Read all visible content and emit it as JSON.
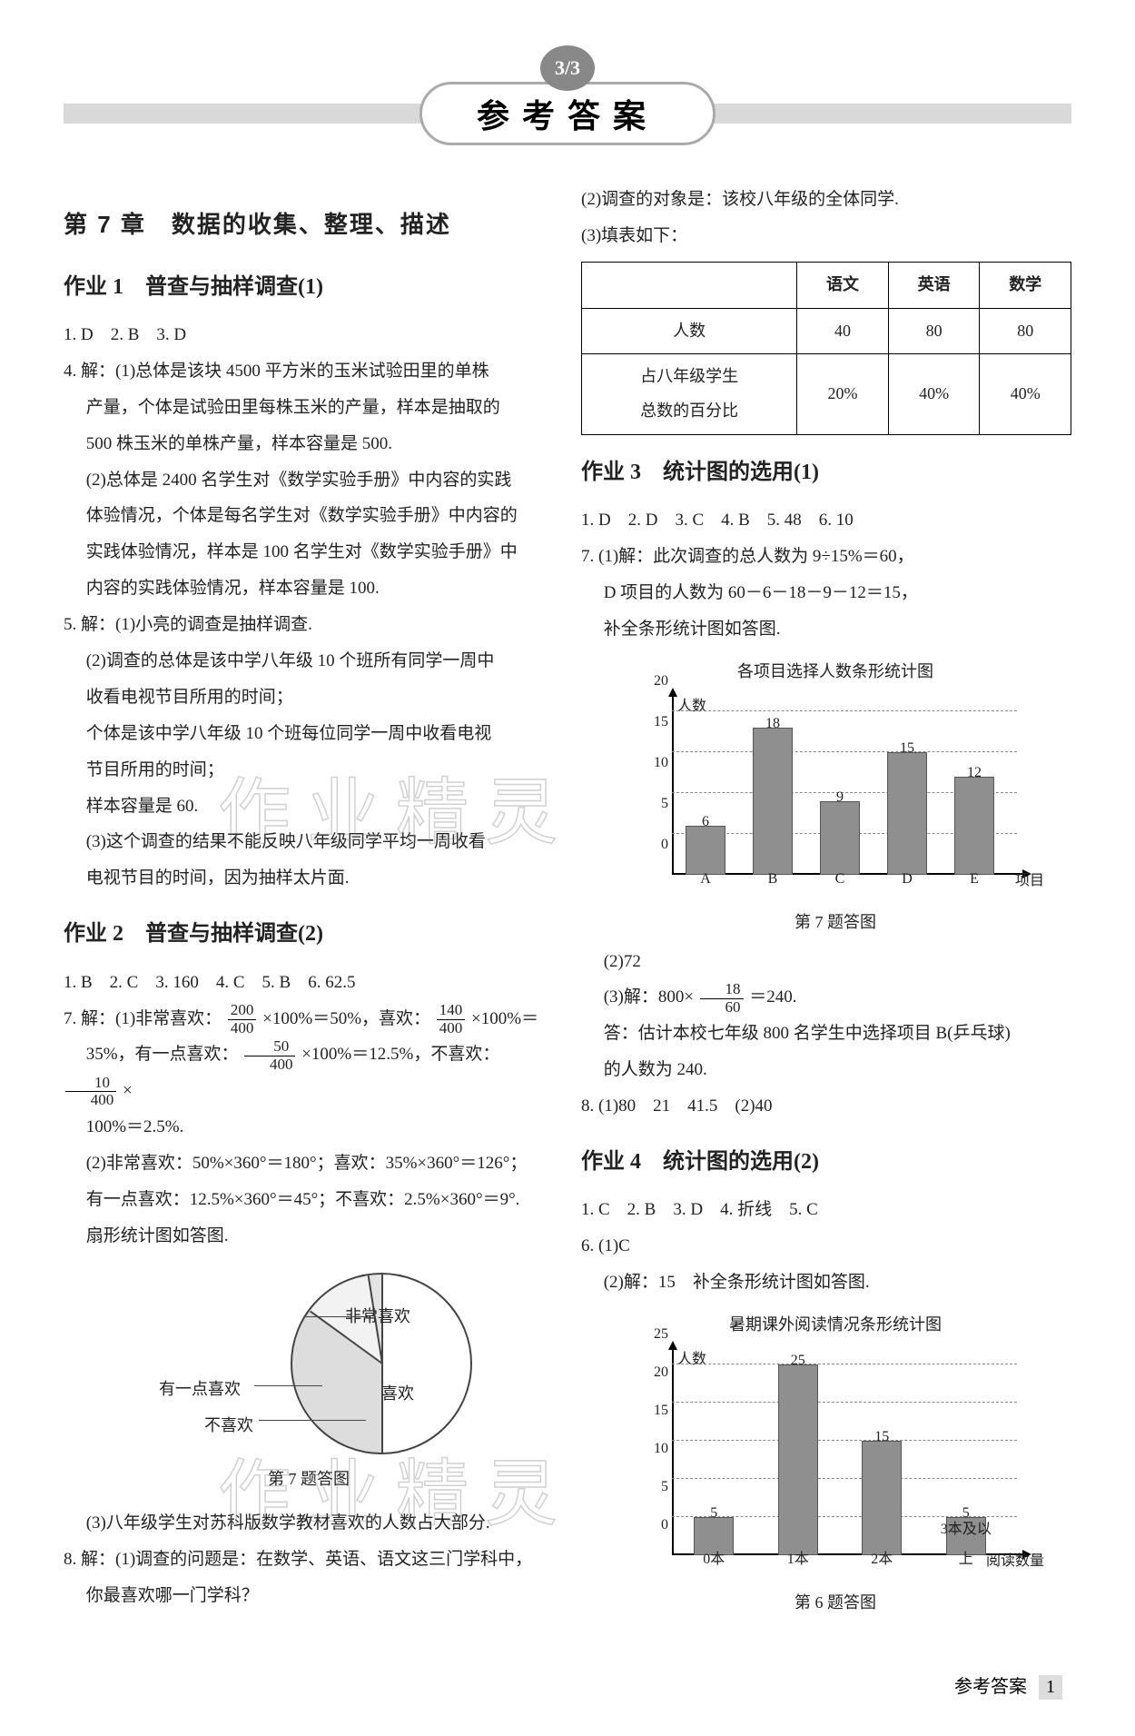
{
  "header": {
    "badge": "3/3",
    "title": "参考答案"
  },
  "left": {
    "chapter": "第 7 章　数据的收集、整理、描述",
    "hw1_title": "作业 1　普查与抽样调查(1)",
    "hw1_ans1": "1. D　2. B　3. D",
    "hw1_q4_1": "4. 解：(1)总体是该块 4500 平方米的玉米试验田里的单株",
    "hw1_q4_2": "产量，个体是试验田里每株玉米的产量，样本是抽取的",
    "hw1_q4_3": "500 株玉米的单株产量，样本容量是 500.",
    "hw1_q4_4": "(2)总体是 2400 名学生对《数学实验手册》中内容的实践",
    "hw1_q4_5": "体验情况，个体是每名学生对《数学实验手册》中内容的",
    "hw1_q4_6": "实践体验情况，样本是 100 名学生对《数学实验手册》中",
    "hw1_q4_7": "内容的实践体验情况，样本容量是 100.",
    "hw1_q5_1": "5. 解：(1)小亮的调查是抽样调查.",
    "hw1_q5_2": "(2)调查的总体是该中学八年级 10 个班所有同学一周中",
    "hw1_q5_3": "收看电视节目所用的时间；",
    "hw1_q5_4": "个体是该中学八年级 10 个班每位同学一周中收看电视",
    "hw1_q5_5": "节目所用的时间；",
    "hw1_q5_6": "样本容量是 60.",
    "hw1_q5_7": "(3)这个调查的结果不能反映八年级同学平均一周收看",
    "hw1_q5_8": "电视节目的时间，因为抽样太片面.",
    "hw2_title": "作业 2　普查与抽样调查(2)",
    "hw2_ans1": "1. B　2. C　3. 160　4. C　5. B　6. 62.5",
    "hw2_q7_a": "7. 解：(1)非常喜欢：",
    "hw2_q7_b": "×100%＝50%，喜欢：",
    "hw2_q7_c": "×100%＝",
    "hw2_q7_d": "35%，有一点喜欢：",
    "hw2_q7_e": "×100%＝12.5%，不喜欢：",
    "hw2_q7_f": "×",
    "hw2_q7_g": "100%＝2.5%.",
    "hw2_q7_2": "(2)非常喜欢：50%×360°＝180°；喜欢：35%×360°＝126°；",
    "hw2_q7_3": "有一点喜欢：12.5%×360°＝45°；不喜欢：2.5%×360°＝9°.",
    "hw2_q7_4": "扇形统计图如答图.",
    "hw2_q7_8": "(3)八年级学生对苏科版数学教材喜欢的人数占大部分.",
    "hw2_q8_1": "8. 解：(1)调查的问题是：在数学、英语、语文这三门学科中，",
    "hw2_q8_2": "你最喜欢哪一门学科？",
    "frac": {
      "f1n": "200",
      "f1d": "400",
      "f2n": "140",
      "f2d": "400",
      "f3n": "50",
      "f3d": "400",
      "f4n": "10",
      "f4d": "400"
    },
    "pie": {
      "labels": {
        "very_like": "非常喜欢",
        "like": "喜欢",
        "little": "有一点喜欢",
        "dislike": "不喜欢"
      },
      "caption": "第 7 题答图"
    }
  },
  "right": {
    "r_1": "(2)调查的对象是：该校八年级的全体同学.",
    "r_2": "(3)填表如下：",
    "table": {
      "h1": "",
      "h2": "语文",
      "h3": "英语",
      "h4": "数学",
      "r1c1": "人数",
      "r1c2": "40",
      "r1c3": "80",
      "r1c4": "80",
      "r2c1a": "占八年级学生",
      "r2c1b": "总数的百分比",
      "r2c2": "20%",
      "r2c3": "40%",
      "r2c4": "40%"
    },
    "hw3_title": "作业 3　统计图的选用(1)",
    "hw3_ans1": "1. D　2. D　3. C　4. B　5. 48　6. 10",
    "hw3_q7_1": "7. (1)解：此次调查的总人数为 9÷15%＝60，",
    "hw3_q7_2": "D 项目的人数为 60－6－18－9－12＝15，",
    "hw3_q7_3": "补全条形统计图如答图.",
    "chart1": {
      "title": "各项目选择人数条形统计图",
      "y_label": "人数",
      "x_label": "项目",
      "y_max": 20,
      "y_ticks": [
        0,
        5,
        10,
        15,
        20
      ],
      "categories": [
        "A",
        "B",
        "C",
        "D",
        "E"
      ],
      "values": [
        6,
        18,
        9,
        15,
        12
      ],
      "bar_color": "#8f8f8f",
      "caption": "第 7 题答图"
    },
    "hw3_q7_4": "(2)72",
    "hw3_q7_5a": "(3)解：800×",
    "hw3_q7_5b": "＝240.",
    "frac_60n": "18",
    "frac_60d": "60",
    "hw3_q7_6": "答：估计本校七年级 800 名学生中选择项目 B(乒乓球)",
    "hw3_q7_7": "的人数为 240.",
    "hw3_q8": "8. (1)80　21　41.5　(2)40",
    "hw4_title": "作业 4　统计图的选用(2)",
    "hw4_ans1": "1. C　2. B　3. D　4. 折线　5. C",
    "hw4_q6_1": "6. (1)C",
    "hw4_q6_2": "(2)解：15　补全条形统计图如答图.",
    "chart2": {
      "title": "暑期课外阅读情况条形统计图",
      "y_label": "人数",
      "x_label": "阅读数量",
      "y_max": 25,
      "y_ticks": [
        0,
        5,
        10,
        15,
        20,
        25
      ],
      "categories": [
        "0本",
        "1本",
        "2本",
        "3本及以上"
      ],
      "values": [
        5,
        25,
        15,
        5
      ],
      "bar_color": "#8f8f8f",
      "caption": "第 6 题答图"
    }
  },
  "watermark": "作业精灵",
  "footer": {
    "label": "参考答案",
    "page": "1"
  }
}
